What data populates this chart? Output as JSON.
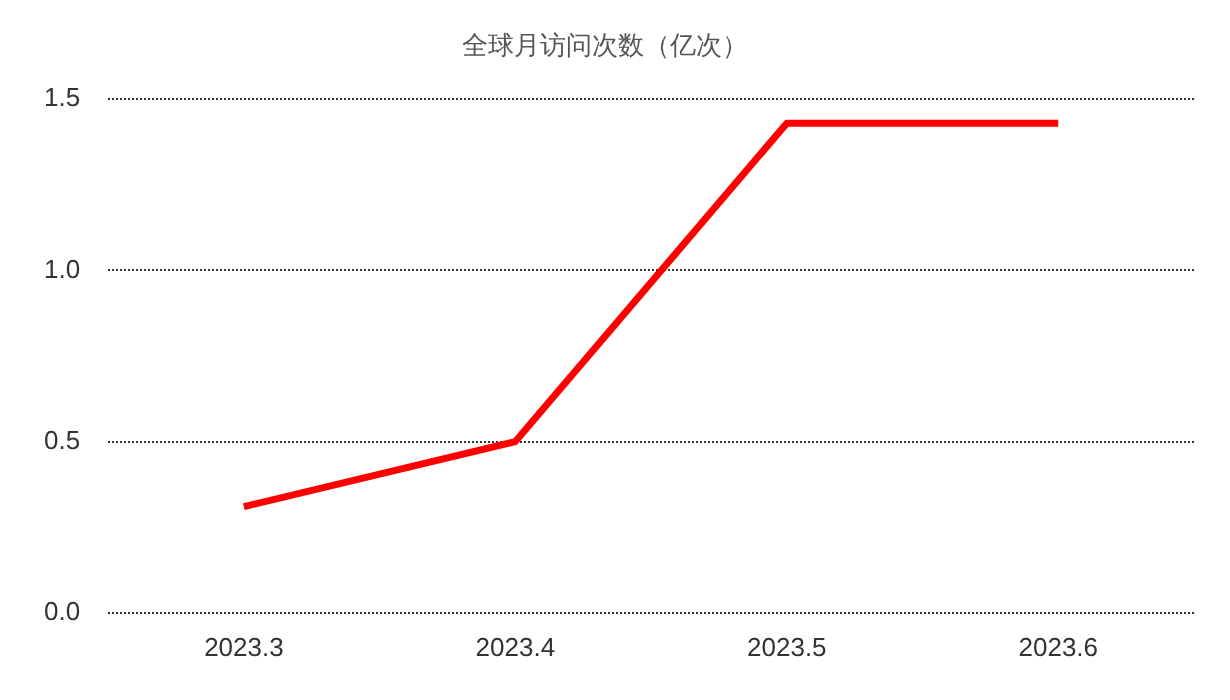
{
  "chart_data": {
    "type": "line",
    "title": "全球月访问次数（亿次）",
    "categories": [
      "2023.3",
      "2023.4",
      "2023.5",
      "2023.6"
    ],
    "series": [
      {
        "color": "#ff0000",
        "values": [
          0.31,
          0.5,
          1.43,
          1.43
        ]
      }
    ],
    "ylim": [
      0,
      1.5
    ],
    "yticks": [
      {
        "value": 0,
        "label": "0.0"
      },
      0.5,
      {
        "value": 1,
        "label": "1.0"
      },
      1.5
    ],
    "grid": "y",
    "legend": false,
    "marker": "none"
  }
}
